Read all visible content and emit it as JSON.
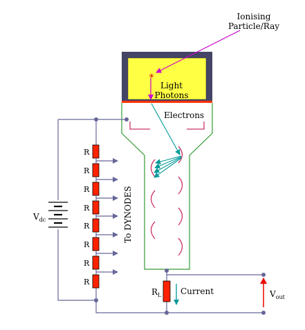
{
  "labels": {
    "ionising": "Ionising",
    "particle_ray": "Particle/Ray",
    "light": "Light",
    "photons": "Photons",
    "electrons": "Electrons",
    "to_dynodes": "To DYNODES",
    "resistor": "R",
    "vdc_main": "V",
    "vdc_sub": "dc",
    "rl_main": "R",
    "rl_sub": "L",
    "current": "Current",
    "vout_main": "V",
    "vout_sub": "out"
  },
  "colors": {
    "housing": "#444466",
    "scintillator": "#ffff44",
    "photocathode": "#ff3300",
    "tube": "#339933",
    "wire": "#666699",
    "resistor": "#ff2200",
    "photon_arrow": "#cc00cc",
    "electron_arrow": "#009999",
    "current_arrow": "#009999",
    "vout_arrow": "#ee0000",
    "dynode": "#cc3366"
  }
}
